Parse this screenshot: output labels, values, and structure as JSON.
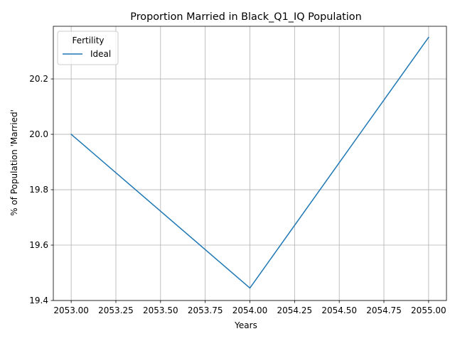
{
  "chart_data": {
    "type": "line",
    "title": "Proportion Married in Black_Q1_IQ Population",
    "xlabel": "Years",
    "ylabel": "% of Population 'Married'",
    "xlim": [
      2052.9,
      2055.1
    ],
    "ylim": [
      19.4,
      20.39
    ],
    "x_ticks": [
      2053.0,
      2053.25,
      2053.5,
      2053.75,
      2054.0,
      2054.25,
      2054.5,
      2054.75,
      2055.0
    ],
    "x_tick_labels": [
      "2053.00",
      "2053.25",
      "2053.50",
      "2053.75",
      "2054.00",
      "2054.25",
      "2054.50",
      "2054.75",
      "2055.00"
    ],
    "y_ticks": [
      19.4,
      19.6,
      19.8,
      20.0,
      20.2
    ],
    "y_tick_labels": [
      "19.4",
      "19.6",
      "19.8",
      "20.0",
      "20.2"
    ],
    "grid": true,
    "legend": {
      "title": "Fertility",
      "placement": "top-left"
    },
    "series": [
      {
        "name": "Ideal",
        "color": "#1f77b4",
        "x": [
          2053.0,
          2054.0,
          2055.0
        ],
        "y": [
          20.0,
          19.445,
          20.35
        ]
      }
    ]
  }
}
